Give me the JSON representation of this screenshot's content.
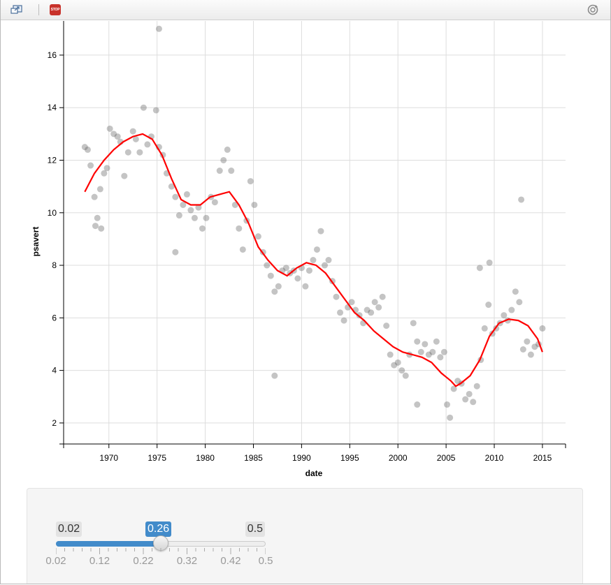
{
  "toolbar": {
    "left_icon": "popout-window-icon",
    "stop_icon": "stop-icon",
    "stop_label": "STOP",
    "refresh_icon": "refresh-icon"
  },
  "chart_data": {
    "type": "scatter",
    "xlabel": "date",
    "ylabel": "psavert",
    "xlim": [
      1965.3,
      2017.4
    ],
    "ylim": [
      1.2,
      17.3
    ],
    "x_ticks": [
      1970,
      1975,
      1980,
      1985,
      1990,
      1995,
      2000,
      2005,
      2010,
      2015
    ],
    "y_ticks": [
      2,
      4,
      6,
      8,
      10,
      12,
      14,
      16
    ],
    "grid": true,
    "colors": {
      "points": "#555555",
      "smooth": "#ff0000",
      "grid": "#dddddd"
    },
    "series": [
      {
        "type": "scatter",
        "x": [
          1967.5,
          1967.8,
          1968.1,
          1968.5,
          1968.8,
          1969.1,
          1969.5,
          1969.8,
          1970.1,
          1970.5,
          1970.9,
          1971.2,
          1971.6,
          1972.0,
          1972.5,
          1972.8,
          1973.2,
          1973.6,
          1974.0,
          1974.4,
          1974.9,
          1975.2,
          1975.6,
          1976.0,
          1976.5,
          1976.9,
          1977.3,
          1977.7,
          1978.1,
          1978.5,
          1978.9,
          1979.3,
          1979.7,
          1980.1,
          1980.6,
          1981.0,
          1981.5,
          1981.9,
          1982.3,
          1982.7,
          1983.1,
          1983.5,
          1983.9,
          1984.3,
          1984.7,
          1985.1,
          1985.5,
          1986.0,
          1986.4,
          1986.8,
          1987.2,
          1987.6,
          1988.0,
          1988.4,
          1988.8,
          1989.2,
          1989.6,
          1990.0,
          1990.4,
          1990.8,
          1991.2,
          1991.6,
          1992.0,
          1992.4,
          1992.8,
          1993.2,
          1993.6,
          1994.0,
          1994.4,
          1994.8,
          1995.2,
          1995.6,
          1996.0,
          1996.4,
          1996.8,
          1997.2,
          1997.6,
          1998.0,
          1998.4,
          1998.8,
          1999.2,
          1999.6,
          2000.0,
          2000.4,
          2000.8,
          2001.2,
          2001.6,
          2002.0,
          2002.4,
          2002.8,
          2003.2,
          2003.6,
          2004.0,
          2004.4,
          2004.8,
          2005.1,
          2005.4,
          2005.8,
          2006.2,
          2006.6,
          2007.0,
          2007.4,
          2007.8,
          2008.2,
          2008.6,
          2009.0,
          2009.4,
          2009.8,
          2010.2,
          2010.6,
          2011.0,
          2011.4,
          2011.8,
          2012.2,
          2012.6,
          2013.0,
          2013.4,
          2013.8,
          2014.2,
          2014.6,
          2015.0,
          1968.6,
          1969.2,
          1975.2,
          1976.9,
          1987.2,
          2002.0,
          2008.5,
          2009.5,
          2012.8
        ],
        "y": [
          12.5,
          12.4,
          11.8,
          10.6,
          9.8,
          10.9,
          11.5,
          11.7,
          13.2,
          13.0,
          12.9,
          12.7,
          11.4,
          12.3,
          13.1,
          12.8,
          12.3,
          14.0,
          12.6,
          12.9,
          13.9,
          12.5,
          12.2,
          11.5,
          11.0,
          10.6,
          9.9,
          10.3,
          10.7,
          10.1,
          9.8,
          10.2,
          9.4,
          9.8,
          10.6,
          10.4,
          11.6,
          12.0,
          12.4,
          11.6,
          10.3,
          9.4,
          8.6,
          9.7,
          11.2,
          10.3,
          9.1,
          8.5,
          8.0,
          7.6,
          7.0,
          7.2,
          7.8,
          7.9,
          7.7,
          7.8,
          7.5,
          7.9,
          7.2,
          7.8,
          8.2,
          8.6,
          9.3,
          8.0,
          8.2,
          7.4,
          6.8,
          6.2,
          5.9,
          6.4,
          6.6,
          6.3,
          6.1,
          5.8,
          6.3,
          6.2,
          6.6,
          6.4,
          6.8,
          5.7,
          4.6,
          4.2,
          4.3,
          4.0,
          3.8,
          4.6,
          5.8,
          5.1,
          4.7,
          5.0,
          4.6,
          4.7,
          5.1,
          4.5,
          4.7,
          2.7,
          2.2,
          3.3,
          3.6,
          3.5,
          2.9,
          3.1,
          2.8,
          3.4,
          4.4,
          5.6,
          6.5,
          5.4,
          5.6,
          5.8,
          6.1,
          5.9,
          6.3,
          7.0,
          6.6,
          4.8,
          5.1,
          4.6,
          4.9,
          5.0,
          5.6,
          9.5,
          9.4,
          17.0,
          8.5,
          3.8,
          2.7,
          7.9,
          8.1,
          10.5
        ]
      },
      {
        "type": "line",
        "name": "smooth",
        "x": [
          1967.5,
          1968.5,
          1969.5,
          1970.5,
          1971.5,
          1972.5,
          1973.5,
          1974.5,
          1975.5,
          1976.5,
          1977.5,
          1978.5,
          1979.5,
          1980.5,
          1981.5,
          1982.5,
          1983.5,
          1984.5,
          1985.5,
          1986.5,
          1987.5,
          1988.5,
          1989.5,
          1990.5,
          1991.5,
          1992.5,
          1993.5,
          1994.5,
          1995.5,
          1996.5,
          1997.5,
          1998.5,
          1999.5,
          2000.5,
          2001.5,
          2002.5,
          2003.5,
          2004.5,
          2005.5,
          2006.0,
          2006.5,
          2007.5,
          2008.5,
          2009.5,
          2010.5,
          2011.5,
          2012.5,
          2013.5,
          2014.5,
          2015.0
        ],
        "y": [
          10.8,
          11.5,
          12.0,
          12.4,
          12.7,
          12.9,
          13.0,
          12.8,
          12.2,
          11.3,
          10.5,
          10.3,
          10.3,
          10.6,
          10.7,
          10.8,
          10.3,
          9.6,
          8.7,
          8.2,
          7.8,
          7.6,
          7.9,
          8.1,
          8.0,
          7.7,
          7.2,
          6.7,
          6.2,
          5.9,
          5.5,
          5.2,
          4.9,
          4.7,
          4.6,
          4.5,
          4.3,
          3.9,
          3.6,
          3.4,
          3.5,
          3.8,
          4.4,
          5.3,
          5.8,
          5.95,
          5.9,
          5.7,
          5.2,
          4.7
        ]
      }
    ]
  },
  "slider": {
    "min": 0.02,
    "max": 0.5,
    "value": 0.26,
    "step": 0.01,
    "min_label": "0.02",
    "max_label": "0.5",
    "value_label": "0.26",
    "grid_labels": [
      "0.02",
      "0.12",
      "0.22",
      "0.32",
      "0.42",
      "0.5"
    ]
  }
}
